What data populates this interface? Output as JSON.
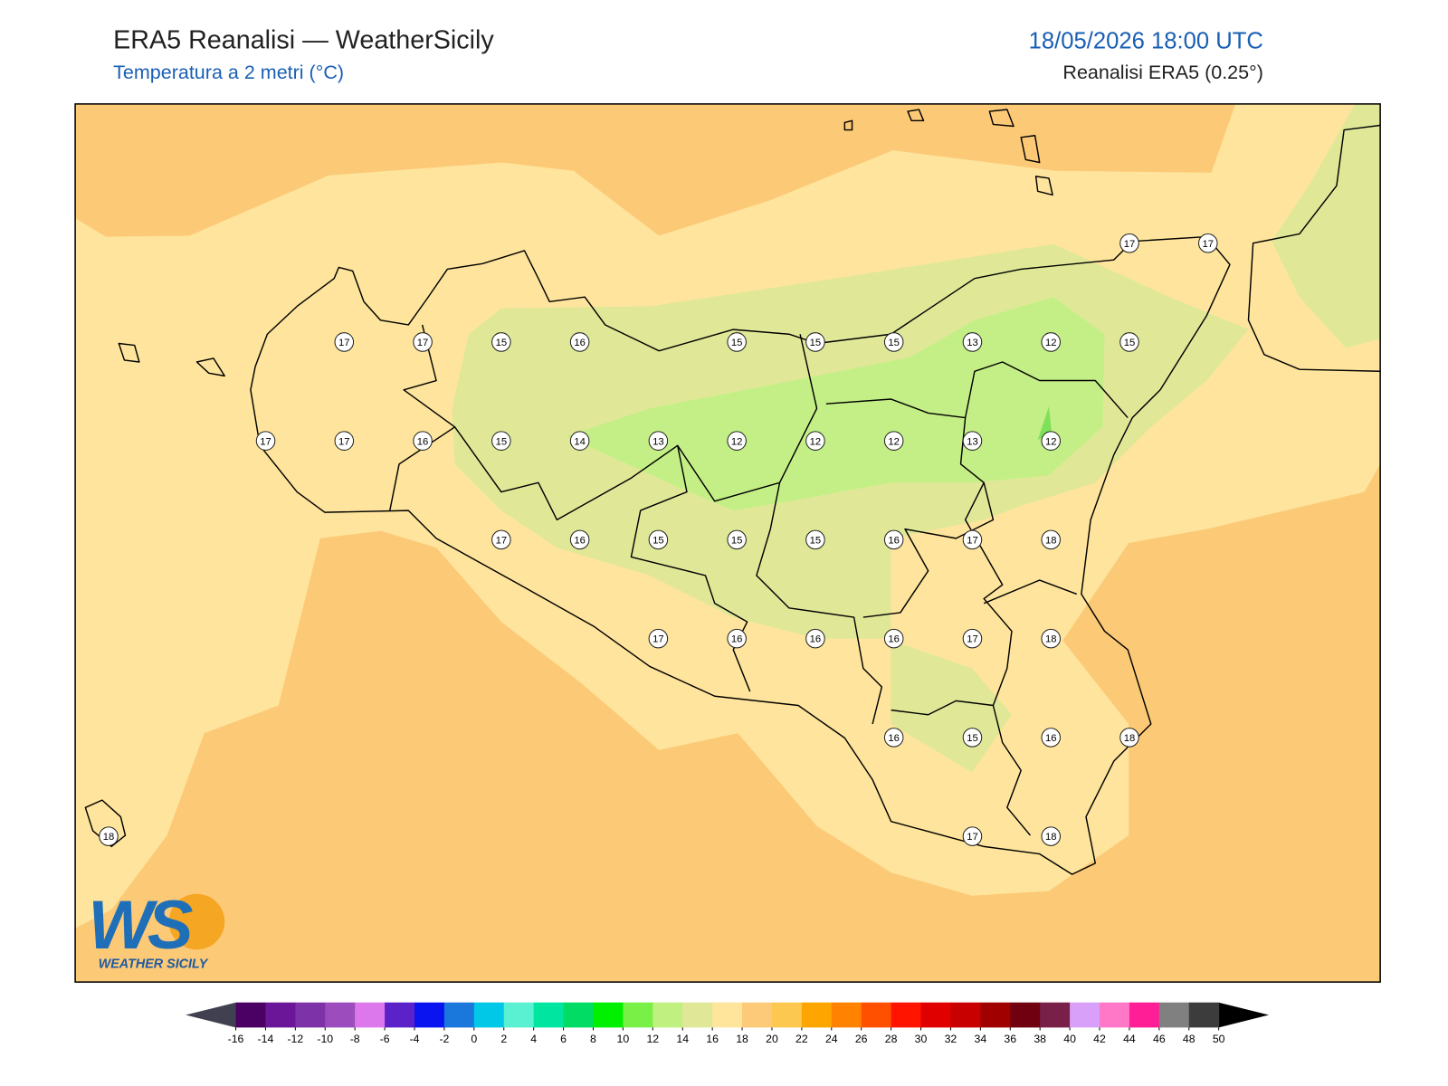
{
  "header": {
    "title": "ERA5 Reanalisi — WeatherSicily",
    "subtitle": "Temperatura a 2 metri (°C)",
    "datetime": "18/05/2026 18:00 UTC",
    "source": "Reanalisi ERA5 (0.25°)"
  },
  "stations": {
    "rows": [
      [
        null,
        null,
        null,
        null,
        null,
        null,
        null,
        null,
        null,
        null,
        null,
        null,
        null,
        17,
        17
      ],
      [
        null,
        null,
        null,
        17,
        17,
        15,
        16,
        null,
        15,
        15,
        15,
        13,
        12,
        15,
        null
      ],
      [
        null,
        null,
        17,
        17,
        16,
        15,
        14,
        13,
        12,
        12,
        12,
        13,
        12,
        null,
        null
      ],
      [
        null,
        null,
        null,
        null,
        null,
        17,
        16,
        15,
        15,
        15,
        16,
        17,
        18,
        null,
        null
      ],
      [
        null,
        null,
        null,
        null,
        null,
        null,
        null,
        17,
        16,
        16,
        16,
        17,
        18,
        null,
        null
      ],
      [
        null,
        null,
        null,
        null,
        null,
        null,
        null,
        null,
        null,
        null,
        16,
        15,
        16,
        18,
        null
      ],
      [
        18,
        null,
        null,
        null,
        null,
        null,
        null,
        null,
        null,
        null,
        null,
        17,
        18,
        null,
        null
      ]
    ]
  },
  "logo": {
    "mark": "WS",
    "name": "WEATHER SICILY"
  },
  "colorbar": {
    "ticks": [
      -16,
      -14,
      -12,
      -10,
      -8,
      -6,
      -4,
      -2,
      0,
      2,
      4,
      6,
      8,
      10,
      12,
      14,
      16,
      18,
      20,
      22,
      24,
      26,
      28,
      30,
      32,
      34,
      36,
      38,
      40,
      42,
      44,
      46,
      48,
      50
    ],
    "colors": [
      "#4b0063",
      "#6b1699",
      "#7d32a8",
      "#9c4cbc",
      "#dc78ec",
      "#5a22c8",
      "#0a14f0",
      "#1a78dc",
      "#00c8e6",
      "#5af0d2",
      "#00e6a0",
      "#00dc64",
      "#00f000",
      "#78f046",
      "#c0f080",
      "#e0e898",
      "#ffe49c",
      "#fcca78",
      "#fcc850",
      "#ffa500",
      "#ff8200",
      "#ff5000",
      "#ff1400",
      "#e00000",
      "#c80000",
      "#a00000",
      "#700010",
      "#782048",
      "#d8a0f8",
      "#ff78c8",
      "#ff1e96",
      "#808080",
      "#3c3c3c"
    ],
    "under_color": "#404050",
    "over_color": "#000000"
  }
}
